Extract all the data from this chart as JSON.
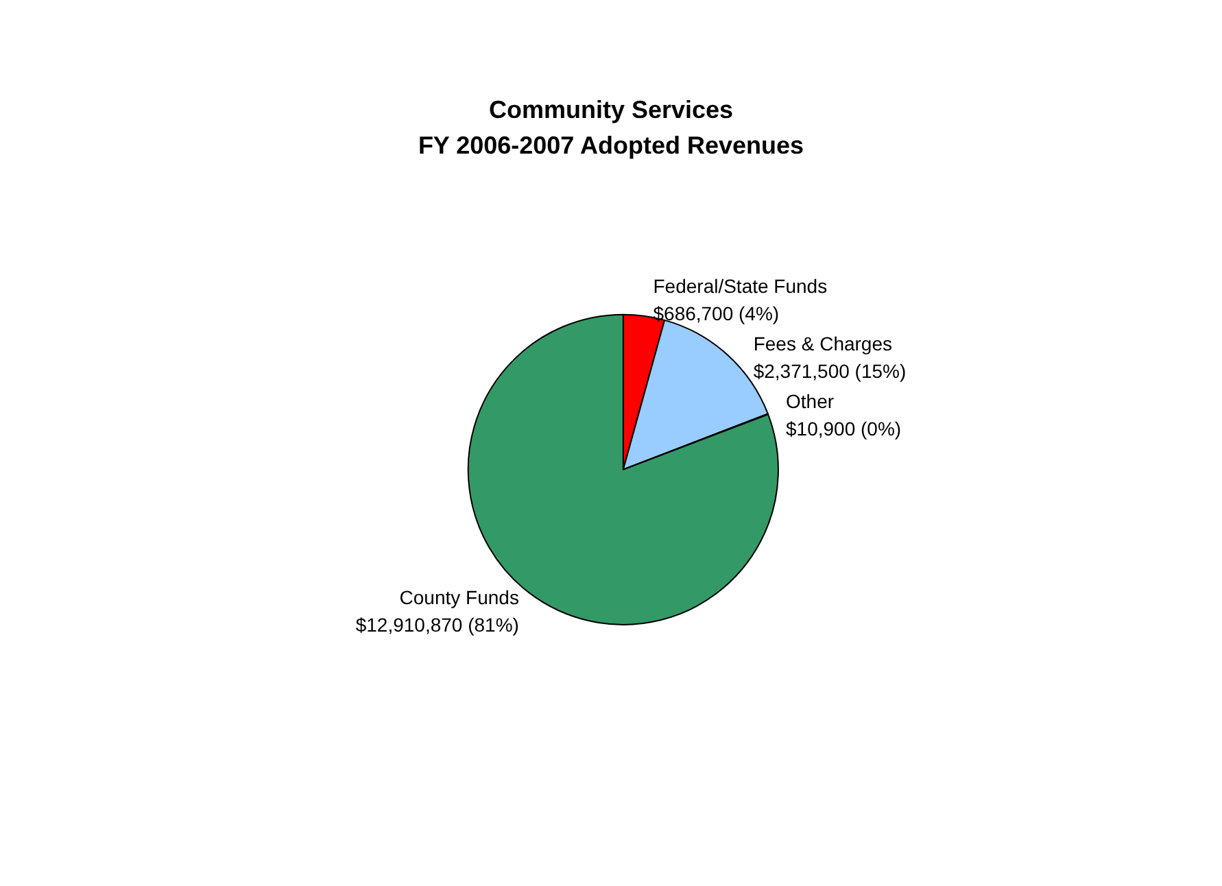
{
  "chart_data": {
    "type": "pie",
    "title": "Community Services\nFY 2006-2007 Adopted Revenues",
    "categories": [
      "Federal/State Funds",
      "Fees & Charges",
      "Other",
      "County Funds"
    ],
    "values": [
      686700,
      2371500,
      10900,
      12910870
    ],
    "colors": [
      "#ff0000",
      "#99ccff",
      "#ffffcc",
      "#339966"
    ],
    "value_labels": [
      "$686,700 (4%)",
      "$2,371,500 (15%)",
      "$10,900 (0%)",
      "$12,910,870 (81%)"
    ]
  }
}
